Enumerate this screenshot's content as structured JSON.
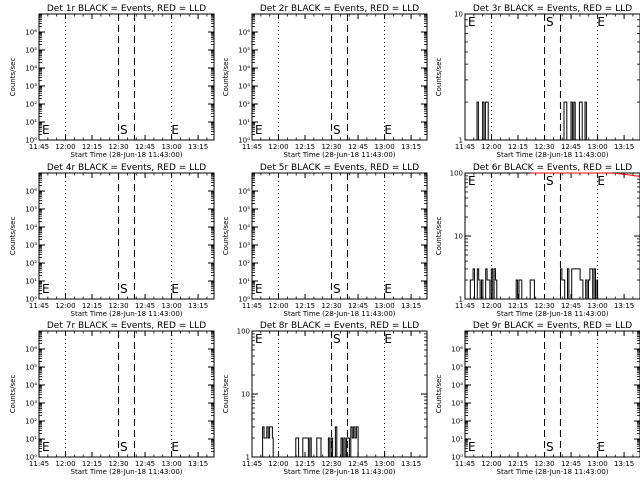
{
  "window": {
    "title": ""
  },
  "chart_data": [
    {
      "type": "line",
      "title": "Det 1r BLACK = Events, RED = LLD",
      "xlabel": "Start Time (28-Jun-18 11:43:00)",
      "ylabel": "Counts/sec",
      "ylog": true,
      "ylim": [
        1,
        10000000
      ],
      "ytick_labels": [
        "10^0",
        "10^1",
        "10^2",
        "10^3",
        "10^4",
        "10^5",
        "10^6"
      ],
      "xlim": [
        11.75,
        13.4
      ],
      "xtick_labels": [
        "11:45",
        "12:00",
        "12:15",
        "12:30",
        "12:45",
        "13:00",
        "13:15"
      ],
      "markers": {
        "E1": "E",
        "S": "S",
        "E2": "E"
      },
      "series": []
    },
    {
      "type": "line",
      "title": "Det 2r BLACK = Events, RED = LLD",
      "xlabel": "Start Time (28-Jun-18 11:43:00)",
      "ylabel": "Counts/sec",
      "ylog": true,
      "ylim": [
        1,
        10000000
      ],
      "ytick_labels": [
        "10^0",
        "10^1",
        "10^2",
        "10^3",
        "10^4",
        "10^5",
        "10^6"
      ],
      "xlim": [
        11.75,
        13.4
      ],
      "xtick_labels": [
        "11:45",
        "12:00",
        "12:15",
        "12:30",
        "12:45",
        "13:00",
        "13:15"
      ],
      "markers": {
        "E1": "E",
        "S": "S",
        "E2": "E"
      },
      "series": []
    },
    {
      "type": "line",
      "title": "Det 3r BLACK = Events, RED = LLD",
      "xlabel": "Start Time (28-Jun-18 11:43:00)",
      "ylabel": "Counts/sec",
      "ylog": true,
      "ylim": [
        1,
        10
      ],
      "ytick_labels": [
        "1",
        "10"
      ],
      "xlim": [
        11.75,
        13.4
      ],
      "xtick_labels": [
        "11:45",
        "12:00",
        "12:15",
        "12:30",
        "12:45",
        "13:00",
        "13:15"
      ],
      "markers": {
        "E1": "E",
        "S": "S",
        "E2": "E"
      },
      "series": [
        {
          "color": "#000000",
          "bursts": [
            {
              "x": [
                11.85,
                11.97
              ],
              "y": [
                1,
                2
              ]
            },
            {
              "x": [
                12.67,
                12.9
              ],
              "y": [
                1,
                2
              ]
            }
          ]
        }
      ]
    },
    {
      "type": "line",
      "title": "Det 4r BLACK = Events, RED = LLD",
      "xlabel": "Start Time (28-Jun-18 11:43:00)",
      "ylabel": "Counts/sec",
      "ylog": true,
      "ylim": [
        1,
        10000000
      ],
      "ytick_labels": [
        "10^0",
        "10^1",
        "10^2",
        "10^3",
        "10^4",
        "10^5",
        "10^6"
      ],
      "xlim": [
        11.75,
        13.4
      ],
      "xtick_labels": [
        "11:45",
        "12:00",
        "12:15",
        "12:30",
        "12:45",
        "13:00",
        "13:15"
      ],
      "markers": {
        "E1": "E",
        "S": "S",
        "E2": "E"
      },
      "series": []
    },
    {
      "type": "line",
      "title": "Det 5r BLACK = Events, RED = LLD",
      "xlabel": "Start Time (28-Jun-18 11:43:00)",
      "ylabel": "Counts/sec",
      "ylog": true,
      "ylim": [
        1,
        10000000
      ],
      "ytick_labels": [
        "10^0",
        "10^1",
        "10^2",
        "10^3",
        "10^4",
        "10^5",
        "10^6"
      ],
      "xlim": [
        11.75,
        13.4
      ],
      "xtick_labels": [
        "11:45",
        "12:00",
        "12:15",
        "12:30",
        "12:45",
        "13:00",
        "13:15"
      ],
      "markers": {
        "E1": "E",
        "S": "S",
        "E2": "E"
      },
      "series": []
    },
    {
      "type": "line",
      "title": "Det 6r BLACK = Events, RED = LLD",
      "xlabel": "Start Time (28-Jun-18 11:43:00)",
      "ylabel": "Counts/sec",
      "ylog": true,
      "ylim": [
        1,
        100
      ],
      "ytick_labels": [
        "1",
        "10",
        "100"
      ],
      "xlim": [
        11.75,
        13.4
      ],
      "xtick_labels": [
        "11:45",
        "12:00",
        "12:15",
        "12:30",
        "12:45",
        "13:00",
        "13:15"
      ],
      "markers": {
        "E1": "E",
        "S": "S",
        "E2": "E"
      },
      "series": [
        {
          "color": "#000000",
          "bursts": [
            {
              "x": [
                11.8,
                12.05
              ],
              "y": [
                1,
                3
              ]
            },
            {
              "x": [
                12.22,
                12.45
              ],
              "y": [
                1,
                2
              ]
            },
            {
              "x": [
                12.65,
                13.0
              ],
              "y": [
                1,
                3
              ]
            }
          ]
        },
        {
          "color": "#ff0000",
          "line": {
            "x": [
              12.37,
              12.44,
              12.5,
              12.6,
              12.68,
              12.76,
              12.84,
              12.92,
              13.0,
              13.08,
              13.16,
              13.24,
              13.32,
              13.4
            ],
            "y": [
              100,
              103,
              102,
              104,
              102,
              103,
              101,
              102,
              100,
              101,
              99,
              96,
              92,
              88
            ]
          }
        }
      ]
    },
    {
      "type": "line",
      "title": "Det 7r BLACK = Events, RED = LLD",
      "xlabel": "Start Time (28-Jun-18 11:43:00)",
      "ylabel": "Counts/sec",
      "ylog": true,
      "ylim": [
        1,
        10000000
      ],
      "ytick_labels": [
        "10^0",
        "10^1",
        "10^2",
        "10^3",
        "10^4",
        "10^5",
        "10^6"
      ],
      "xlim": [
        11.75,
        13.4
      ],
      "xtick_labels": [
        "11:45",
        "12:00",
        "12:15",
        "12:30",
        "12:45",
        "13:00",
        "13:15"
      ],
      "markers": {
        "E1": "E",
        "S": "S",
        "E2": "E"
      },
      "series": []
    },
    {
      "type": "line",
      "title": "Det 8r BLACK = Events, RED = LLD",
      "xlabel": "Start Time (28-Jun-18 11:43:00)",
      "ylabel": "Counts/sec",
      "ylog": true,
      "ylim": [
        1,
        100
      ],
      "ytick_labels": [
        "1",
        "10",
        "100"
      ],
      "xlim": [
        11.75,
        13.4
      ],
      "xtick_labels": [
        "11:45",
        "12:00",
        "12:15",
        "12:30",
        "12:45",
        "13:00",
        "13:15"
      ],
      "markers": {
        "E1": "E",
        "S": "S",
        "E2": "E"
      },
      "series": [
        {
          "color": "#000000",
          "bursts": [
            {
              "x": [
                11.85,
                11.95
              ],
              "y": [
                2,
                3
              ]
            },
            {
              "x": [
                12.15,
                12.45
              ],
              "y": [
                1,
                2
              ]
            },
            {
              "x": [
                12.47,
                12.75
              ],
              "y": [
                1,
                3
              ]
            }
          ]
        }
      ]
    },
    {
      "type": "line",
      "title": "Det 9r BLACK = Events, RED = LLD",
      "xlabel": "Start Time (28-Jun-18 11:43:00)",
      "ylabel": "Counts/sec",
      "ylog": true,
      "ylim": [
        1,
        10000000
      ],
      "ytick_labels": [
        "10^0",
        "10^1",
        "10^2",
        "10^3",
        "10^4",
        "10^5",
        "10^6"
      ],
      "xlim": [
        11.75,
        13.4
      ],
      "xtick_labels": [
        "11:45",
        "12:00",
        "12:15",
        "12:30",
        "12:45",
        "13:00",
        "13:15"
      ],
      "markers": {
        "E1": "E",
        "S": "S",
        "E2": "E"
      },
      "series": []
    }
  ],
  "reference_lines": {
    "dotted_x": [
      "12:00",
      "13:00"
    ],
    "dashed_x": [
      "12:30",
      "12:39"
    ]
  },
  "grid": false
}
